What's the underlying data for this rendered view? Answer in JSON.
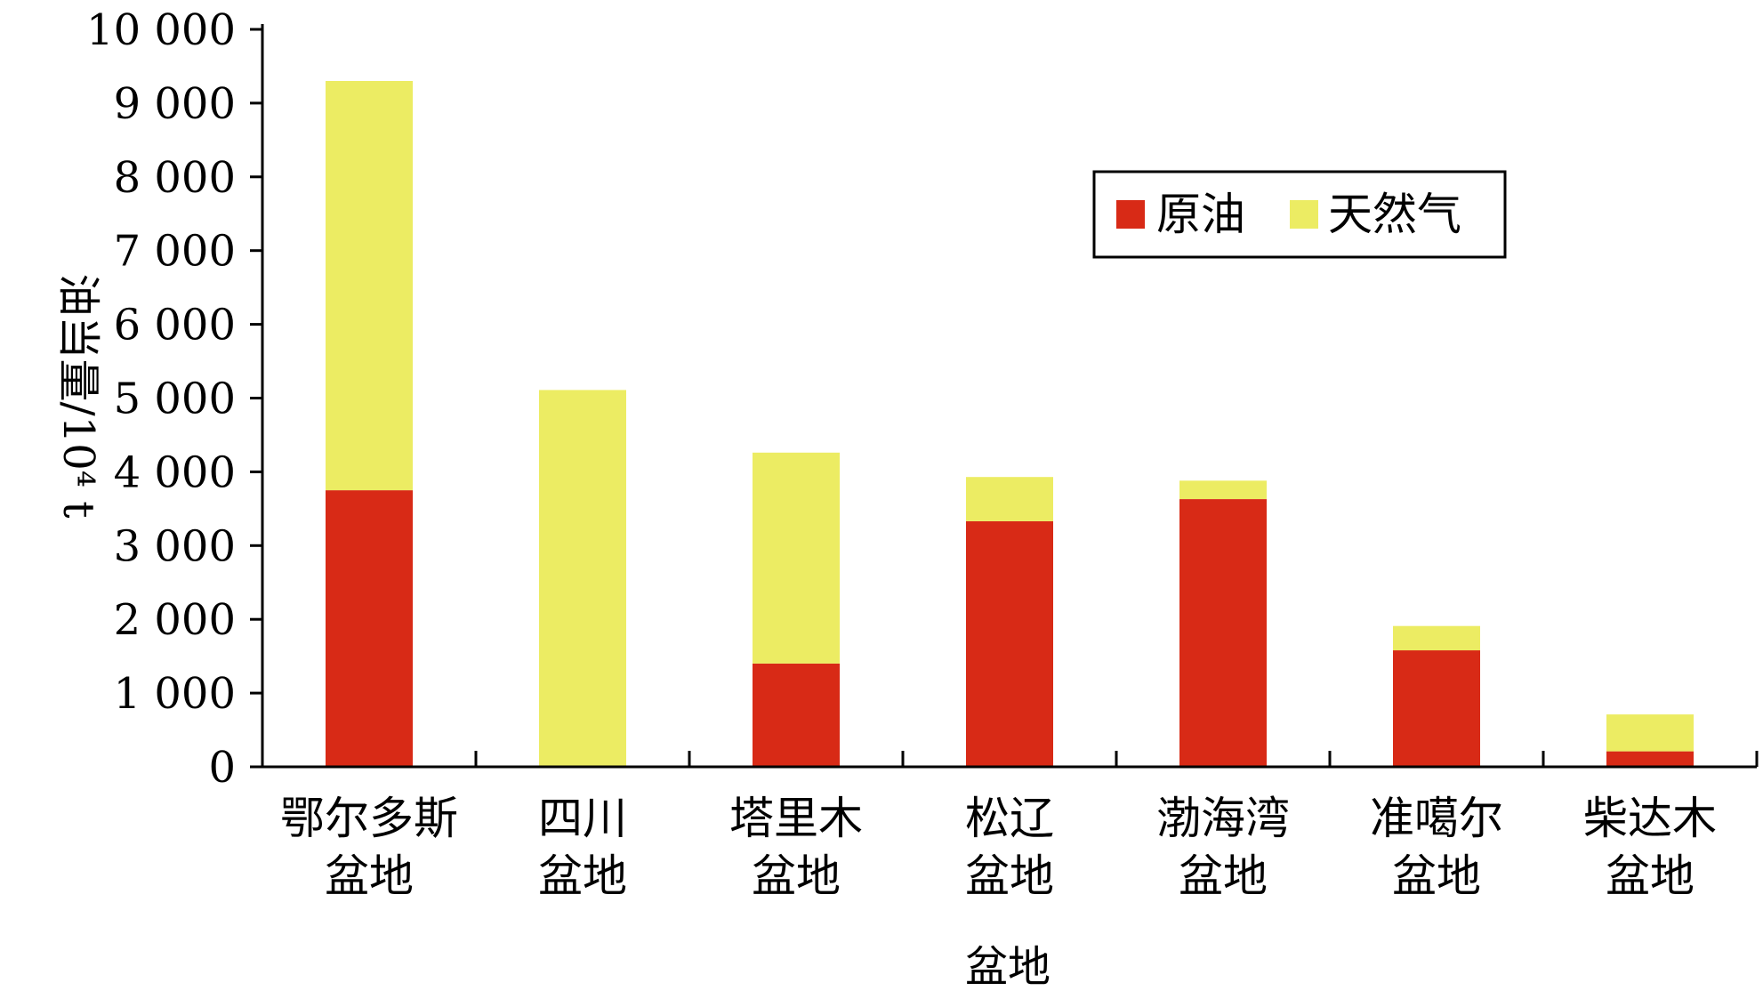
{
  "chart_data": {
    "type": "bar",
    "stacked": true,
    "categories": [
      "鄂尔多斯盆地",
      "四川盆地",
      "塔里木盆地",
      "松辽盆地",
      "渤海湾盆地",
      "准噶尔盆地",
      "柴达木盆地"
    ],
    "category_lines": [
      [
        "鄂尔多斯",
        "盆地"
      ],
      [
        "四川",
        "盆地"
      ],
      [
        "塔里木",
        "盆地"
      ],
      [
        "松辽",
        "盆地"
      ],
      [
        "渤海湾",
        "盆地"
      ],
      [
        "准噶尔",
        "盆地"
      ],
      [
        "柴达木",
        "盆地"
      ]
    ],
    "series": [
      {
        "name": "原油",
        "color": "#d82a16",
        "values": [
          3750,
          0,
          1400,
          3330,
          3630,
          1580,
          210
        ]
      },
      {
        "name": "天然气",
        "color": "#ecec63",
        "values": [
          5550,
          5110,
          2860,
          600,
          250,
          330,
          500
        ]
      }
    ],
    "title": "",
    "xlabel": "盆地",
    "ylabel": "油当量/10⁴ t",
    "ylim": [
      0,
      10000
    ],
    "yticks": [
      0,
      1000,
      2000,
      3000,
      4000,
      5000,
      6000,
      7000,
      8000,
      9000,
      10000
    ],
    "ytick_labels": [
      "0",
      "1 000",
      "2 000",
      "3 000",
      "4 000",
      "5 000",
      "6 000",
      "7 000",
      "8 000",
      "9 000",
      "10 000"
    ],
    "grid": false,
    "legend_position": "top-right"
  }
}
